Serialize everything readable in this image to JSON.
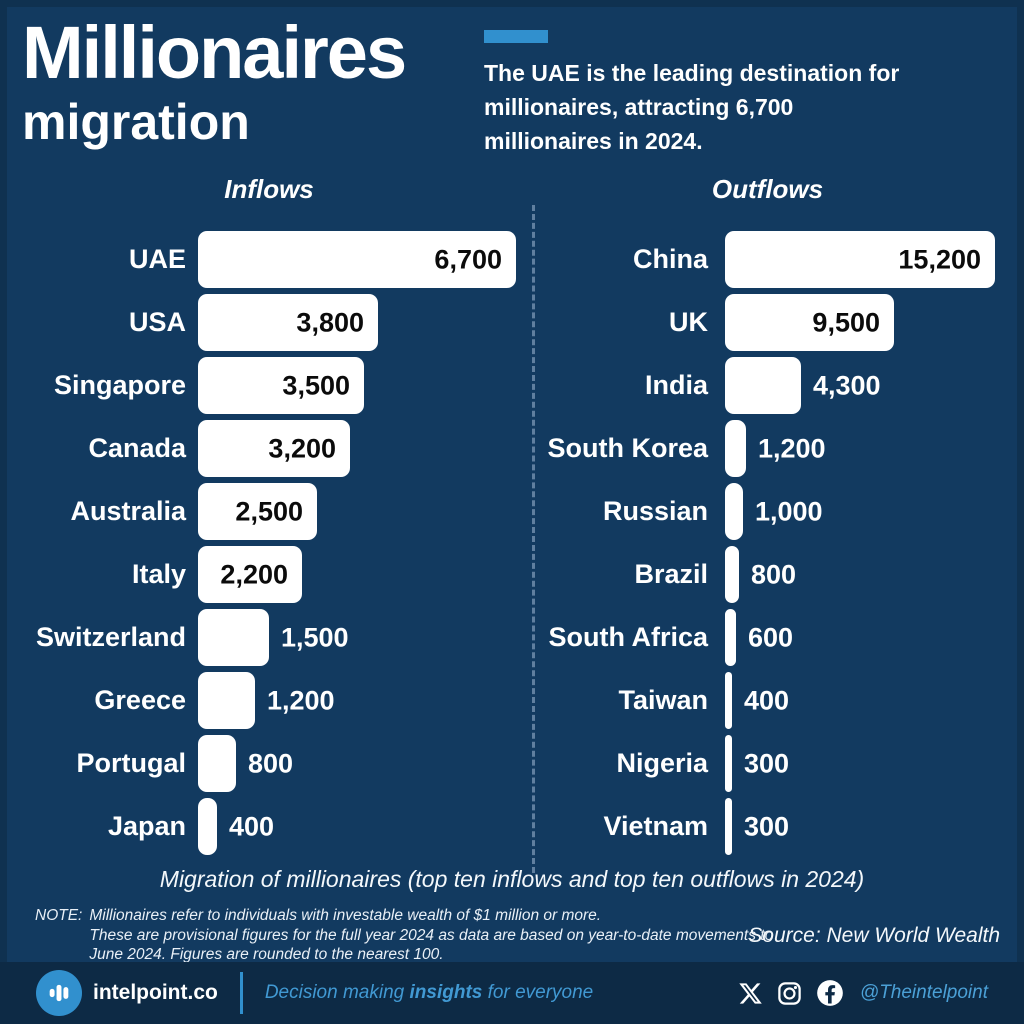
{
  "header": {
    "title_line1": "Millionaires",
    "title_line2": "migration",
    "summary_lines": [
      "The UAE is the leading destination for",
      "millionaires, attracting 6,700",
      "millionaires in 2024."
    ]
  },
  "chart_data": [
    {
      "type": "bar",
      "orientation": "horizontal",
      "title": "Inflows",
      "categories": [
        "UAE",
        "USA",
        "Singapore",
        "Canada",
        "Australia",
        "Italy",
        "Switzerland",
        "Greece",
        "Portugal",
        "Japan"
      ],
      "values": [
        6700,
        3800,
        3500,
        3200,
        2500,
        2200,
        1500,
        1200,
        800,
        400
      ],
      "value_labels": [
        "6,700",
        "3,800",
        "3,500",
        "3,200",
        "2,500",
        "2,200",
        "1,500",
        "1,200",
        "800",
        "400"
      ],
      "xlim": [
        0,
        6700
      ],
      "bar_color": "#ffffff",
      "grid": false,
      "legend": false
    },
    {
      "type": "bar",
      "orientation": "horizontal",
      "title": "Outflows",
      "categories": [
        "China",
        "UK",
        "India",
        "South Korea",
        "Russian",
        "Brazil",
        "South Africa",
        "Taiwan",
        "Nigeria",
        "Vietnam"
      ],
      "values": [
        15200,
        9500,
        4300,
        1200,
        1000,
        800,
        600,
        400,
        300,
        300
      ],
      "value_labels": [
        "15,200",
        "9,500",
        "4,300",
        "1,200",
        "1,000",
        "800",
        "600",
        "400",
        "300",
        "300"
      ],
      "xlim": [
        0,
        15200
      ],
      "bar_color": "#ffffff",
      "grid": false,
      "legend": false
    }
  ],
  "caption": "Migration of millionaires (top ten inflows and top ten outflows in 2024)",
  "note": {
    "prefix": "NOTE:",
    "lines": [
      "Millionaires refer to individuals with investable wealth of $1 million or more.",
      "These are provisional figures for the full year 2024 as data are based on year-to-date movements to",
      "June 2024. Figures are rounded to the nearest 100."
    ]
  },
  "source": "Source: New World Wealth",
  "footer": {
    "brand": "intelpoint.co",
    "slogan_pre": "Decision making ",
    "slogan_bold": "insights",
    "slogan_post": " for everyone",
    "handle": "@Theintelpoint"
  },
  "colors": {
    "background": "#123a60",
    "footer_background": "#0d2a45",
    "accent_blue": "#3190ce",
    "slogan_blue": "#4199d3",
    "bar_white": "#ffffff",
    "value_dark": "#0b0b0b"
  }
}
